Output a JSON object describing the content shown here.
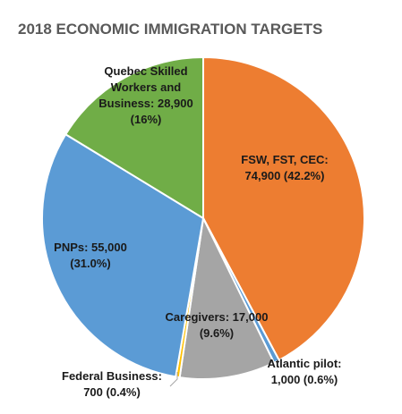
{
  "chart_data": {
    "type": "pie",
    "title": "2018 ECONOMIC IMMIGRATION TARGETS",
    "slices": [
      {
        "name": "FSW, FST, CEC",
        "value": 74900,
        "lines": [
          "FSW, FST, CEC:",
          "74,900 (42.2%)"
        ],
        "color": "#ED7D31"
      },
      {
        "name": "Atlantic pilot",
        "value": 1000,
        "lines": [
          "Atlantic pilot:",
          "1,000 (0.6%)"
        ],
        "color": "#5B9BD5"
      },
      {
        "name": "Caregivers",
        "value": 17000,
        "lines": [
          "Caregivers: 17,000",
          "(9.6%)"
        ],
        "color": "#A5A5A5"
      },
      {
        "name": "Federal Business",
        "value": 700,
        "lines": [
          "Federal Business:",
          "700 (0.4%)"
        ],
        "color": "#FFC000"
      },
      {
        "name": "PNPs",
        "value": 55000,
        "lines": [
          "PNPs: 55,000",
          "(31.0%)"
        ],
        "color": "#5B9BD5"
      },
      {
        "name": "Quebec Skilled Workers and Business",
        "value": 28900,
        "lines": [
          "Quebec Skilled",
          "Workers and",
          "Business: 28,900",
          "(16%)"
        ],
        "color": "#70AD47"
      }
    ]
  }
}
